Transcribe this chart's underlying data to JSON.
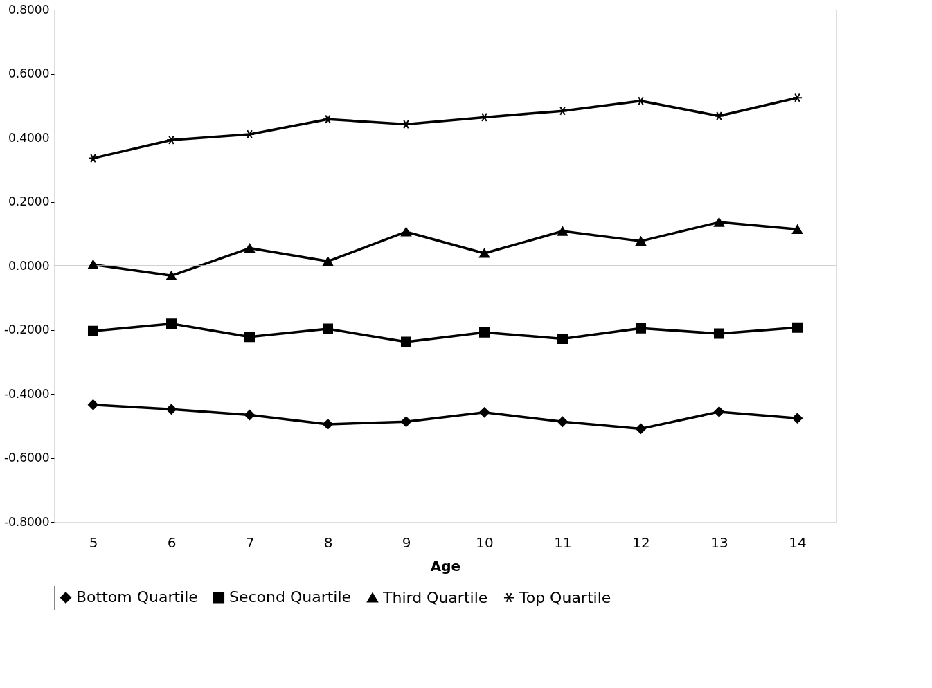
{
  "chart_data": {
    "type": "line",
    "xlabel": "Age",
    "categories": [
      "5",
      "6",
      "7",
      "8",
      "9",
      "10",
      "11",
      "12",
      "13",
      "14"
    ],
    "series": [
      {
        "name": "Bottom Quartile",
        "color": "#000000",
        "marker": "diamond",
        "values": [
          -0.434,
          -0.448,
          -0.466,
          -0.495,
          -0.487,
          -0.458,
          -0.487,
          -0.509,
          -0.456,
          -0.476
        ]
      },
      {
        "name": "Second Quartile",
        "color": "#000000",
        "marker": "square",
        "values": [
          -0.204,
          -0.181,
          -0.222,
          -0.197,
          -0.238,
          -0.208,
          -0.228,
          -0.195,
          -0.212,
          -0.193
        ]
      },
      {
        "name": "Third Quartile",
        "color": "#000000",
        "marker": "triangle",
        "values": [
          0.004,
          -0.031,
          0.055,
          0.014,
          0.106,
          0.039,
          0.108,
          0.077,
          0.136,
          0.114
        ]
      },
      {
        "name": "Top Quartile",
        "color": "#000000",
        "marker": "cross",
        "values": [
          0.336,
          0.393,
          0.411,
          0.458,
          0.442,
          0.464,
          0.484,
          0.515,
          0.468,
          0.525
        ]
      }
    ],
    "ylim": [
      -0.8,
      0.8
    ],
    "yticks": [
      {
        "value": -0.8,
        "label": "-0.8000"
      },
      {
        "value": -0.6,
        "label": "-0.6000"
      },
      {
        "value": -0.4,
        "label": "-0.4000"
      },
      {
        "value": -0.2,
        "label": "-0.2000"
      },
      {
        "value": 0,
        "label": "0.0000"
      },
      {
        "value": 0.2,
        "label": "0.2000"
      },
      {
        "value": 0.4,
        "label": "0.4000"
      },
      {
        "value": 0.6,
        "label": "0.6000"
      },
      {
        "value": 0.8,
        "label": "0.8000"
      }
    ],
    "ref_lines": [
      {
        "axis": "y",
        "value": 0,
        "color": "#c0c0c0"
      }
    ],
    "grid": false,
    "legend": "bottom",
    "line_style": "solid"
  }
}
